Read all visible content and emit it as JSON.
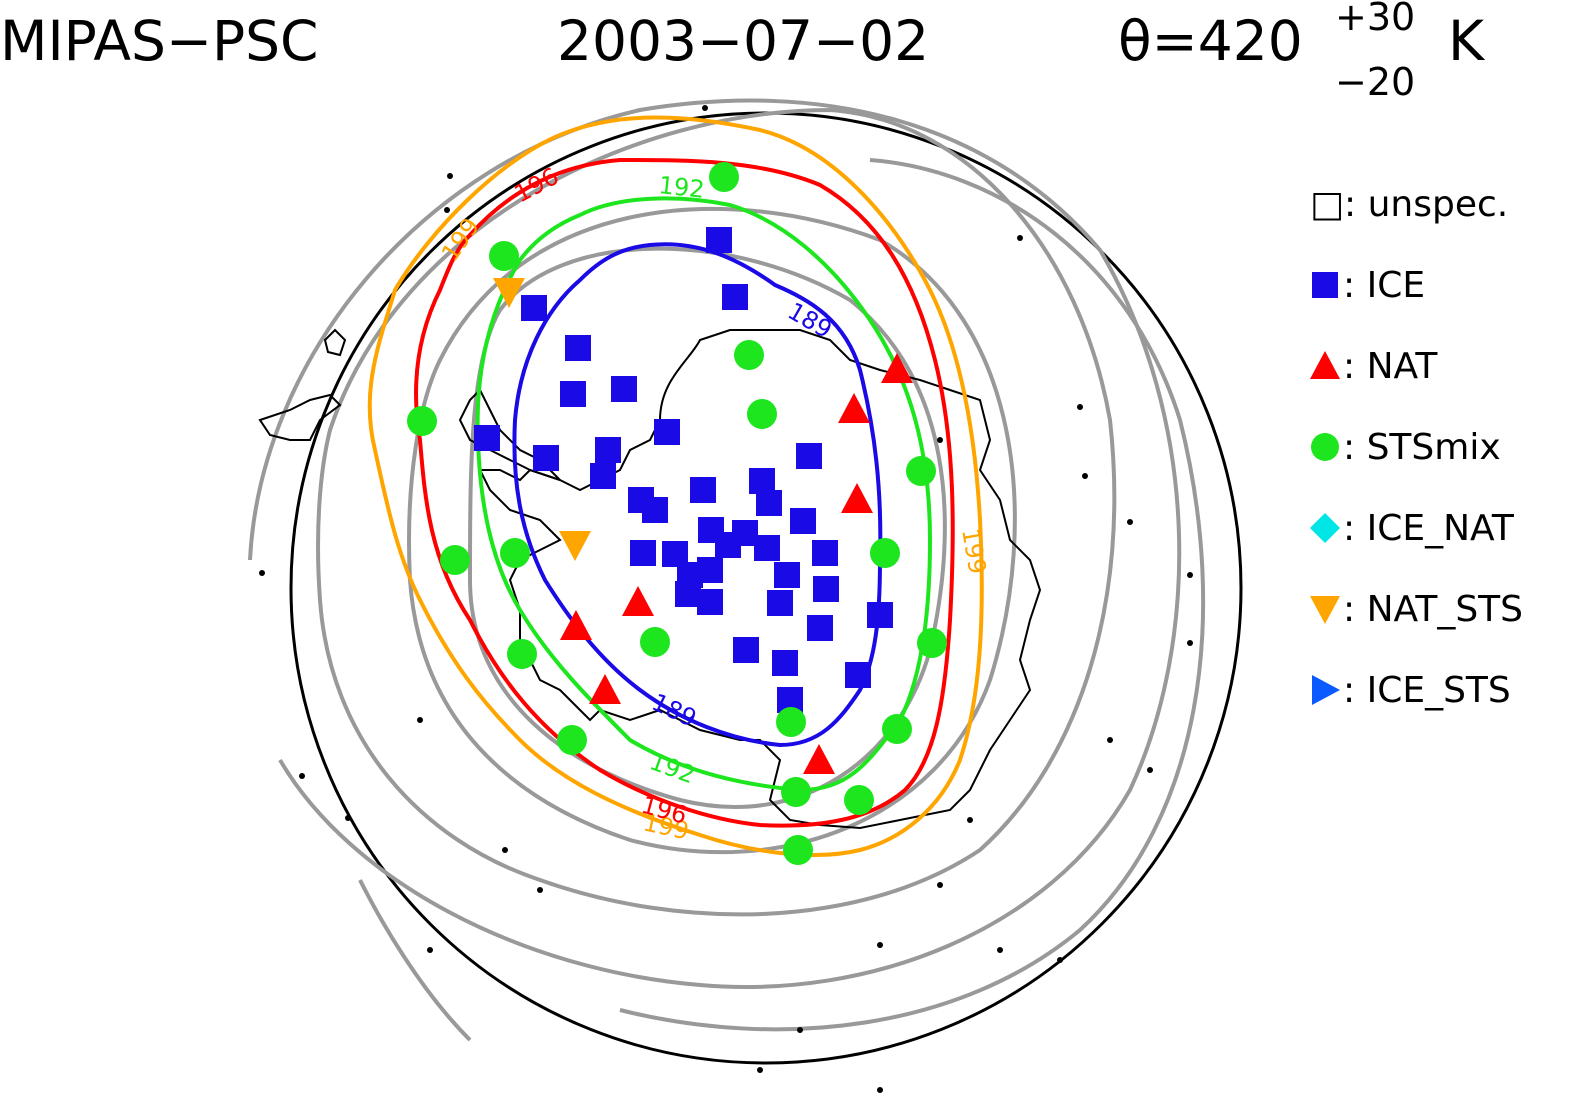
{
  "header": {
    "instrument": "MIPAS−PSC",
    "date": "2003−07−02",
    "theta_prefix": "θ=420",
    "theta_upper": "+30",
    "theta_lower": "−20",
    "theta_unit": "K"
  },
  "legend": [
    {
      "label": "□: unspec.",
      "symbol": "open-square",
      "color": "#000000"
    },
    {
      "label": ": ICE",
      "symbol": "square",
      "color": "#1a0ae6"
    },
    {
      "label": ": NAT",
      "symbol": "triangle-up",
      "color": "#ff0000"
    },
    {
      "label": ": STSmix",
      "symbol": "circle",
      "color": "#1ee61e"
    },
    {
      "label": ": ICE_NAT",
      "symbol": "diamond",
      "color": "#00e6e6"
    },
    {
      "label": ": NAT_STS",
      "symbol": "triangle-down",
      "color": "#ffa500"
    },
    {
      "label": ": ICE_STS",
      "symbol": "triangle-right",
      "color": "#0a5aff"
    }
  ],
  "contour_labels": {
    "c189": "189",
    "c192": "192",
    "c196": "196",
    "c199": "199"
  },
  "colors": {
    "c189": "#1a0ae6",
    "c192": "#1ee61e",
    "c196": "#ff0000",
    "c199": "#ffa500",
    "gray": "#999999"
  }
}
